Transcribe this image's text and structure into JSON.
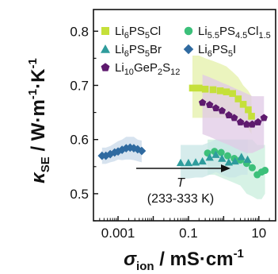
{
  "chart_data": {
    "type": "scatter",
    "x_scale": "log",
    "xlim": [
      0.0002,
      30
    ],
    "ylim": [
      0.45,
      0.84
    ],
    "x_ticks": [
      0.001,
      0.1,
      10
    ],
    "x_tick_labels": [
      "0.001",
      "0.1",
      "10"
    ],
    "y_ticks": [
      0.5,
      0.6,
      0.7,
      0.8
    ],
    "y_tick_labels": [
      "0.5",
      "0.6",
      "0.7",
      "0.8"
    ],
    "xlabel": {
      "symbol": "σ",
      "sub": "ion",
      "rest": " / mS·cm",
      "sup": "-1"
    },
    "ylabel": {
      "symbol": "κ",
      "sub": "SE",
      "rest": " / W·m",
      "sup1": "-1",
      "mid": "·K",
      "sup2": "-1"
    },
    "legend_position": "top",
    "annotation": {
      "symbol": "T",
      "range": "(233-333 K)"
    },
    "series": [
      {
        "name": {
          "p1": "Li",
          "s1": "6",
          "p2": "PS",
          "s2": "5",
          "p3": "Cl"
        },
        "marker": "square",
        "color": "#c5e03a",
        "band_color": "#e4f0a8",
        "x": [
          0.13,
          0.2,
          0.3,
          0.5,
          0.8,
          1.2,
          1.8,
          2.6,
          3.6,
          5.0,
          6.2
        ],
        "y": [
          0.695,
          0.695,
          0.693,
          0.692,
          0.69,
          0.688,
          0.685,
          0.675,
          0.665,
          0.655,
          0.643
        ],
        "band_upper": [
          0.755,
          0.755,
          0.75,
          0.745,
          0.74,
          0.735,
          0.725,
          0.715,
          0.7,
          0.69,
          0.68
        ],
        "band_lower": [
          0.64,
          0.64,
          0.64,
          0.64,
          0.64,
          0.64,
          0.64,
          0.635,
          0.63,
          0.62,
          0.61
        ]
      },
      {
        "name": {
          "p1": "Li",
          "s1": "5.5",
          "p2": "PS",
          "s2": "4.5",
          "p3": "Cl",
          "s3": "1.5"
        },
        "marker": "circle",
        "color": "#3cc07a",
        "band_color": "#c8eedc",
        "x": [
          0.35,
          0.55,
          0.85,
          1.3,
          2.0,
          3.0,
          4.5,
          6.5,
          9.0,
          12.0,
          15.0
        ],
        "y": [
          0.575,
          0.578,
          0.576,
          0.57,
          0.565,
          0.562,
          0.556,
          0.548,
          0.535,
          0.54,
          0.543
        ],
        "band_upper": [
          0.6,
          0.6,
          0.6,
          0.6,
          0.6,
          0.6,
          0.6,
          0.6,
          0.59,
          0.59,
          0.59
        ],
        "band_lower": [
          0.535,
          0.535,
          0.53,
          0.525,
          0.52,
          0.515,
          0.5,
          0.495,
          0.49,
          0.49,
          0.5
        ]
      },
      {
        "name": {
          "p1": "Li",
          "s1": "6",
          "p2": "PS",
          "s2": "5",
          "p3": "Br"
        },
        "marker": "triangle",
        "color": "#2e9c9c",
        "band_color": "#c8e5e6",
        "x": [
          0.06,
          0.1,
          0.16,
          0.25,
          0.4,
          0.6,
          0.9,
          1.4,
          2.1,
          3.2,
          4.8
        ],
        "y": [
          0.557,
          0.557,
          0.558,
          0.56,
          0.567,
          0.572,
          0.565,
          0.558,
          0.56,
          0.568,
          0.563
        ],
        "band_upper": [
          0.59,
          0.59,
          0.59,
          0.59,
          0.595,
          0.6,
          0.6,
          0.6,
          0.6,
          0.6,
          0.6
        ],
        "band_lower": [
          0.528,
          0.528,
          0.53,
          0.53,
          0.535,
          0.54,
          0.535,
          0.53,
          0.53,
          0.535,
          0.535
        ]
      },
      {
        "name": {
          "p1": "Li",
          "s1": "6",
          "p2": "PS",
          "s2": "5",
          "p3": "I"
        },
        "marker": "diamond",
        "color": "#2f6aa0",
        "band_color": "#c9d9ea",
        "x": [
          0.00035,
          0.00045,
          0.0006,
          0.0008,
          0.001,
          0.0013,
          0.0017,
          0.0022,
          0.0028,
          0.0036,
          0.0047
        ],
        "y": [
          0.57,
          0.57,
          0.573,
          0.576,
          0.578,
          0.581,
          0.584,
          0.585,
          0.584,
          0.582,
          0.579
        ],
        "band_upper": [
          0.585,
          0.585,
          0.588,
          0.593,
          0.597,
          0.6,
          0.605,
          0.605,
          0.605,
          0.6,
          0.598
        ],
        "band_lower": [
          0.555,
          0.555,
          0.558,
          0.56,
          0.563,
          0.562,
          0.563,
          0.563,
          0.562,
          0.56,
          0.558
        ]
      },
      {
        "name": {
          "p1": "Li",
          "s1": "10",
          "p2": "GeP",
          "s2": "2",
          "p3": "S",
          "s3": "12"
        },
        "marker": "pentagon",
        "color": "#5e1a6e",
        "band_color": "#e0c9e6",
        "x": [
          0.25,
          0.4,
          0.6,
          0.9,
          1.4,
          2.0,
          3.0,
          4.5,
          6.5,
          9.5,
          14.0
        ],
        "y": [
          0.668,
          0.664,
          0.658,
          0.653,
          0.645,
          0.64,
          0.632,
          0.628,
          0.628,
          0.632,
          0.64
        ],
        "band_upper": [
          0.72,
          0.715,
          0.71,
          0.705,
          0.7,
          0.695,
          0.69,
          0.685,
          0.68,
          0.68,
          0.68
        ],
        "band_lower": [
          0.61,
          0.605,
          0.6,
          0.595,
          0.59,
          0.585,
          0.58,
          0.575,
          0.575,
          0.58,
          0.585
        ]
      }
    ]
  }
}
